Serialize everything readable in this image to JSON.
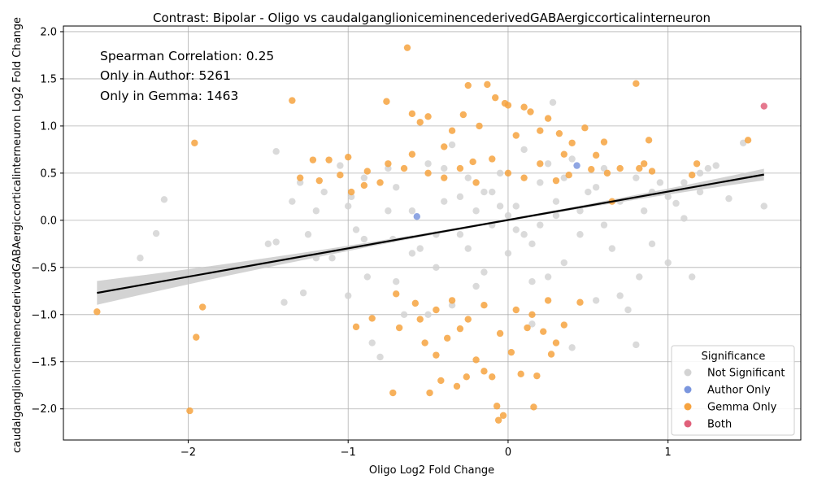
{
  "chart_data": {
    "type": "scatter",
    "title": "Contrast: Bipolar - Oligo vs caudalganglioniceminencederivedGABAergiccorticalinterneuron",
    "xlabel": "Oligo Log2 Fold Change",
    "ylabel": "caudalganglioniceminencederivedGABAergiccorticalinterneuron Log2 Fold Change",
    "xlim": [
      -2.78,
      1.83
    ],
    "ylim": [
      -2.33,
      2.06
    ],
    "xticks": [
      -2,
      -1,
      0,
      1
    ],
    "xtick_labels": [
      "−2",
      "−1",
      "0",
      "1"
    ],
    "yticks": [
      -2.0,
      -1.5,
      -1.0,
      -0.5,
      0.0,
      0.5,
      1.0,
      1.5,
      2.0
    ],
    "ytick_labels": [
      "−2.0",
      "−1.5",
      "−1.0",
      "−0.5",
      "0.0",
      "0.5",
      "1.0",
      "1.5",
      "2.0"
    ],
    "grid": true,
    "legend_position": "bottom-right",
    "annotations": [
      "Spearman Correlation: 0.25",
      "Only in Author: 5261",
      "Only in Gemma: 1463"
    ],
    "legend": {
      "title": "Significance",
      "entries": [
        {
          "label": "Not Significant",
          "color": "#d3d3d3"
        },
        {
          "label": "Author Only",
          "color": "#7b96de"
        },
        {
          "label": "Gemma Only",
          "color": "#f6a340"
        },
        {
          "label": "Both",
          "color": "#e0607a"
        }
      ]
    },
    "regression": {
      "x": [
        -2.57,
        1.6
      ],
      "y": [
        -0.77,
        0.485
      ],
      "color": "#000000"
    },
    "series": [
      {
        "name": "Not Significant",
        "color": "#d3d3d3",
        "points": [
          [
            -2.3,
            -0.4
          ],
          [
            -2.2,
            -0.14
          ],
          [
            -2.15,
            0.22
          ],
          [
            -1.45,
            0.73
          ],
          [
            -1.5,
            -0.25
          ],
          [
            -1.45,
            -0.23
          ],
          [
            -1.4,
            -0.87
          ],
          [
            -1.35,
            0.2
          ],
          [
            -1.3,
            0.4
          ],
          [
            -1.28,
            -0.77
          ],
          [
            -1.25,
            -0.15
          ],
          [
            -1.2,
            0.1
          ],
          [
            -1.15,
            0.3
          ],
          [
            -1.1,
            -0.4
          ],
          [
            -1.05,
            0.58
          ],
          [
            -1.0,
            -0.8
          ],
          [
            -0.98,
            0.25
          ],
          [
            -0.95,
            -0.1
          ],
          [
            -0.9,
            0.45
          ],
          [
            -0.88,
            -0.6
          ],
          [
            -0.85,
            -1.3
          ],
          [
            -0.8,
            -1.45
          ],
          [
            -0.75,
            0.55
          ],
          [
            -0.72,
            -0.2
          ],
          [
            -0.7,
            0.35
          ],
          [
            -0.65,
            -1.0
          ],
          [
            -0.6,
            0.1
          ],
          [
            -0.55,
            -0.3
          ],
          [
            -0.5,
            0.6
          ],
          [
            -0.45,
            -0.5
          ],
          [
            -0.4,
            0.2
          ],
          [
            -0.35,
            0.8
          ],
          [
            -0.3,
            -0.15
          ],
          [
            -0.25,
            0.45
          ],
          [
            -0.2,
            -0.7
          ],
          [
            -0.15,
            0.3
          ],
          [
            -0.1,
            -0.05
          ],
          [
            -0.05,
            0.5
          ],
          [
            0.0,
            -0.35
          ],
          [
            0.05,
            0.15
          ],
          [
            0.1,
            0.75
          ],
          [
            0.15,
            -0.25
          ],
          [
            0.2,
            0.4
          ],
          [
            0.25,
            -0.6
          ],
          [
            0.28,
            1.25
          ],
          [
            0.3,
            0.05
          ],
          [
            0.35,
            -0.45
          ],
          [
            0.4,
            0.65
          ],
          [
            0.45,
            -0.15
          ],
          [
            0.5,
            0.3
          ],
          [
            0.55,
            -0.85
          ],
          [
            0.6,
            0.55
          ],
          [
            0.65,
            -0.3
          ],
          [
            0.7,
            0.2
          ],
          [
            0.75,
            -0.95
          ],
          [
            0.8,
            0.45
          ],
          [
            0.8,
            -1.32
          ],
          [
            0.82,
            -0.6
          ],
          [
            0.85,
            0.1
          ],
          [
            0.9,
            -0.25
          ],
          [
            0.95,
            0.4
          ],
          [
            1.0,
            0.25
          ],
          [
            1.0,
            -0.45
          ],
          [
            1.05,
            0.18
          ],
          [
            1.1,
            0.02
          ],
          [
            1.15,
            -0.6
          ],
          [
            1.2,
            0.5
          ],
          [
            1.25,
            0.55
          ],
          [
            1.3,
            0.58
          ],
          [
            1.38,
            0.23
          ],
          [
            1.47,
            0.82
          ],
          [
            1.6,
            0.15
          ],
          [
            1.1,
            0.4
          ],
          [
            1.2,
            0.3
          ],
          [
            -0.35,
            -0.9
          ],
          [
            0.4,
            -1.35
          ],
          [
            -0.5,
            -1.0
          ],
          [
            0.15,
            -1.1
          ],
          [
            -0.75,
            0.1
          ],
          [
            0.6,
            -0.05
          ],
          [
            -0.2,
            0.1
          ],
          [
            0.1,
            -0.15
          ],
          [
            -0.1,
            0.3
          ],
          [
            0.2,
            -0.05
          ],
          [
            -0.3,
            0.25
          ],
          [
            0.3,
            0.2
          ],
          [
            -0.45,
            -0.15
          ],
          [
            0.45,
            0.1
          ],
          [
            -0.6,
            -0.35
          ],
          [
            0.55,
            0.35
          ],
          [
            -0.25,
            -0.3
          ],
          [
            0.0,
            0.05
          ],
          [
            0.05,
            -0.1
          ],
          [
            -0.05,
            0.15
          ],
          [
            -1.2,
            -0.4
          ],
          [
            -1.0,
            0.15
          ],
          [
            -0.9,
            -0.2
          ],
          [
            0.7,
            -0.8
          ],
          [
            0.9,
            0.3
          ],
          [
            -0.7,
            -0.65
          ],
          [
            0.35,
            0.45
          ],
          [
            -0.15,
            -0.55
          ],
          [
            0.25,
            0.6
          ],
          [
            -0.4,
            0.55
          ],
          [
            0.15,
            -0.65
          ]
        ]
      },
      {
        "name": "Author Only",
        "color": "#7b96de",
        "points": [
          [
            0.43,
            0.58
          ],
          [
            -0.57,
            0.04
          ]
        ]
      },
      {
        "name": "Gemma Only",
        "color": "#f6a340",
        "points": [
          [
            -2.57,
            -0.97
          ],
          [
            -1.99,
            -2.02
          ],
          [
            -1.96,
            0.82
          ],
          [
            -1.95,
            -1.24
          ],
          [
            -1.91,
            -0.92
          ],
          [
            -1.35,
            1.27
          ],
          [
            -1.3,
            0.45
          ],
          [
            -1.22,
            0.64
          ],
          [
            -1.18,
            0.42
          ],
          [
            -1.12,
            0.64
          ],
          [
            -1.05,
            0.48
          ],
          [
            -1.0,
            0.67
          ],
          [
            -0.98,
            0.3
          ],
          [
            -0.95,
            -1.13
          ],
          [
            -0.9,
            0.37
          ],
          [
            -0.88,
            0.52
          ],
          [
            -0.85,
            -1.04
          ],
          [
            -0.8,
            0.4
          ],
          [
            -0.76,
            1.26
          ],
          [
            -0.75,
            0.6
          ],
          [
            -0.72,
            -1.83
          ],
          [
            -0.7,
            -0.78
          ],
          [
            -0.68,
            -1.14
          ],
          [
            -0.65,
            0.55
          ],
          [
            -0.63,
            1.83
          ],
          [
            -0.6,
            1.13
          ],
          [
            -0.58,
            -0.88
          ],
          [
            -0.55,
            1.04
          ],
          [
            -0.52,
            -1.3
          ],
          [
            -0.5,
            1.1
          ],
          [
            -0.49,
            -1.83
          ],
          [
            -0.45,
            -1.43
          ],
          [
            -0.42,
            -1.7
          ],
          [
            -0.4,
            0.78
          ],
          [
            -0.38,
            -1.25
          ],
          [
            -0.35,
            0.95
          ],
          [
            -0.32,
            -1.76
          ],
          [
            -0.3,
            -1.15
          ],
          [
            -0.28,
            1.12
          ],
          [
            -0.26,
            -1.66
          ],
          [
            -0.25,
            1.43
          ],
          [
            -0.22,
            0.62
          ],
          [
            -0.2,
            -1.48
          ],
          [
            -0.18,
            1.0
          ],
          [
            -0.15,
            -1.6
          ],
          [
            -0.13,
            1.44
          ],
          [
            -0.1,
            -1.66
          ],
          [
            -0.08,
            1.3
          ],
          [
            -0.07,
            -1.97
          ],
          [
            -0.06,
            -2.12
          ],
          [
            -0.03,
            -2.07
          ],
          [
            -0.02,
            1.24
          ],
          [
            0.0,
            1.22
          ],
          [
            0.02,
            -1.4
          ],
          [
            0.05,
            0.9
          ],
          [
            0.08,
            -1.63
          ],
          [
            0.1,
            1.2
          ],
          [
            0.12,
            -1.14
          ],
          [
            0.14,
            1.15
          ],
          [
            0.16,
            -1.98
          ],
          [
            0.18,
            -1.65
          ],
          [
            0.2,
            0.95
          ],
          [
            0.22,
            -1.18
          ],
          [
            0.25,
            1.08
          ],
          [
            0.27,
            -1.42
          ],
          [
            0.3,
            -1.3
          ],
          [
            0.32,
            0.92
          ],
          [
            0.35,
            -1.11
          ],
          [
            0.38,
            0.48
          ],
          [
            0.4,
            0.82
          ],
          [
            0.45,
            -0.87
          ],
          [
            0.48,
            0.98
          ],
          [
            0.52,
            0.54
          ],
          [
            0.55,
            0.69
          ],
          [
            0.6,
            0.83
          ],
          [
            0.62,
            0.5
          ],
          [
            0.65,
            0.2
          ],
          [
            0.7,
            0.55
          ],
          [
            0.8,
            1.45
          ],
          [
            0.82,
            0.55
          ],
          [
            0.85,
            0.6
          ],
          [
            0.88,
            0.85
          ],
          [
            0.9,
            0.52
          ],
          [
            1.15,
            0.48
          ],
          [
            1.18,
            0.6
          ],
          [
            1.5,
            0.85
          ],
          [
            -0.4,
            0.45
          ],
          [
            -0.3,
            0.55
          ],
          [
            -0.2,
            0.4
          ],
          [
            -0.1,
            0.65
          ],
          [
            0.0,
            0.5
          ],
          [
            0.1,
            0.45
          ],
          [
            0.2,
            0.6
          ],
          [
            0.3,
            0.42
          ],
          [
            -0.35,
            -0.85
          ],
          [
            -0.25,
            -1.05
          ],
          [
            -0.15,
            -0.9
          ],
          [
            -0.05,
            -1.2
          ],
          [
            0.05,
            -0.95
          ],
          [
            0.15,
            -1.0
          ],
          [
            -0.45,
            -0.95
          ],
          [
            0.25,
            -0.85
          ],
          [
            -0.6,
            0.7
          ],
          [
            -0.5,
            0.5
          ],
          [
            0.35,
            0.7
          ],
          [
            -0.55,
            -1.05
          ]
        ]
      },
      {
        "name": "Both",
        "color": "#e0607a",
        "points": [
          [
            1.6,
            1.21
          ]
        ]
      }
    ]
  }
}
